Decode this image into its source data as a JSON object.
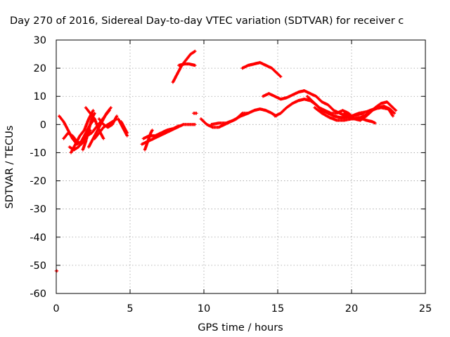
{
  "chart_data": {
    "type": "scatter",
    "title": "Day 270 of 2016, Sidereal Day-to-day VTEC variation (SDTVAR) for receiver c",
    "xlabel": "GPS time / hours",
    "ylabel": "SDTVAR / TECUs",
    "xlim": [
      0,
      25
    ],
    "ylim": [
      -60,
      30
    ],
    "xticks": [
      0,
      5,
      10,
      15,
      20,
      25
    ],
    "yticks": [
      30,
      20,
      10,
      0,
      -10,
      -20,
      -30,
      -40,
      -50,
      -60
    ],
    "grid": true,
    "marker": "plus",
    "color": "#ff0000",
    "segments": [
      [
        [
          0.0,
          -52.0
        ],
        [
          0.05,
          -52.0
        ]
      ],
      [
        [
          0.2,
          3.0
        ],
        [
          0.5,
          1.0
        ],
        [
          0.8,
          -2.0
        ],
        [
          1.1,
          -5.0
        ],
        [
          1.4,
          -7.0
        ],
        [
          1.7,
          -6.0
        ],
        [
          2.0,
          -3.0
        ],
        [
          2.3,
          0.0
        ],
        [
          2.6,
          2.0
        ]
      ],
      [
        [
          0.5,
          -5.0
        ],
        [
          0.8,
          -3.0
        ],
        [
          1.1,
          -4.0
        ],
        [
          1.4,
          -6.0
        ],
        [
          1.7,
          -7.0
        ],
        [
          2.0,
          -5.0
        ],
        [
          2.3,
          -2.0
        ]
      ],
      [
        [
          1.0,
          -10.0
        ],
        [
          1.3,
          -7.0
        ],
        [
          1.6,
          -4.0
        ],
        [
          1.9,
          -2.0
        ],
        [
          2.2,
          2.0
        ],
        [
          2.5,
          5.0
        ]
      ],
      [
        [
          0.9,
          -8.0
        ],
        [
          1.2,
          -9.0
        ],
        [
          1.5,
          -8.0
        ],
        [
          1.8,
          -6.0
        ],
        [
          2.1,
          -4.0
        ],
        [
          2.4,
          -3.0
        ],
        [
          2.7,
          -1.0
        ],
        [
          3.0,
          1.0
        ],
        [
          3.3,
          3.0
        ],
        [
          3.6,
          5.0
        ]
      ],
      [
        [
          1.8,
          -9.0
        ],
        [
          2.0,
          -6.0
        ],
        [
          2.2,
          -2.0
        ],
        [
          2.4,
          2.0
        ],
        [
          2.6,
          4.0
        ]
      ],
      [
        [
          2.0,
          6.0
        ],
        [
          2.3,
          4.0
        ],
        [
          2.6,
          2.0
        ],
        [
          2.9,
          -2.0
        ],
        [
          3.2,
          -5.0
        ]
      ],
      [
        [
          2.2,
          -8.0
        ],
        [
          2.5,
          -5.0
        ],
        [
          2.8,
          -2.0
        ],
        [
          3.1,
          1.0
        ],
        [
          3.4,
          4.0
        ],
        [
          3.7,
          6.0
        ]
      ],
      [
        [
          2.6,
          -5.0
        ],
        [
          2.9,
          -3.0
        ],
        [
          3.2,
          -1.0
        ],
        [
          3.5,
          0.0
        ],
        [
          3.8,
          1.0
        ],
        [
          4.1,
          2.0
        ]
      ],
      [
        [
          2.9,
          2.0
        ],
        [
          3.2,
          0.0
        ],
        [
          3.5,
          -1.0
        ],
        [
          3.8,
          0.0
        ],
        [
          4.1,
          3.0
        ]
      ],
      [
        [
          4.2,
          2.0
        ],
        [
          4.4,
          0.0
        ],
        [
          4.6,
          -2.0
        ],
        [
          4.8,
          -4.0
        ]
      ],
      [
        [
          4.4,
          1.0
        ],
        [
          4.6,
          -1.0
        ],
        [
          4.8,
          -3.0
        ]
      ],
      [
        [
          5.8,
          -7.0
        ],
        [
          6.2,
          -6.0
        ],
        [
          6.6,
          -5.0
        ],
        [
          7.0,
          -4.0
        ],
        [
          7.4,
          -3.0
        ],
        [
          7.8,
          -2.0
        ],
        [
          8.2,
          -1.0
        ],
        [
          8.6,
          0.0
        ],
        [
          9.0,
          0.0
        ],
        [
          9.4,
          0.0
        ]
      ],
      [
        [
          5.9,
          -5.0
        ],
        [
          6.3,
          -4.0
        ],
        [
          6.7,
          -4.0
        ],
        [
          7.1,
          -3.0
        ],
        [
          7.5,
          -2.0
        ],
        [
          7.9,
          -1.5
        ],
        [
          8.3,
          -0.5
        ]
      ],
      [
        [
          6.0,
          -9.0
        ],
        [
          6.2,
          -6.0
        ],
        [
          6.4,
          -3.0
        ],
        [
          6.5,
          -2.0
        ]
      ],
      [
        [
          9.3,
          4.0
        ],
        [
          9.5,
          4.0
        ]
      ],
      [
        [
          7.9,
          15.0
        ],
        [
          8.2,
          18.0
        ],
        [
          8.5,
          21.0
        ],
        [
          8.8,
          23.0
        ],
        [
          9.1,
          25.0
        ],
        [
          9.4,
          26.0
        ]
      ],
      [
        [
          8.3,
          21.0
        ],
        [
          8.7,
          21.5
        ],
        [
          9.0,
          21.5
        ],
        [
          9.4,
          21.0
        ]
      ],
      [
        [
          9.8,
          2.0
        ],
        [
          10.2,
          0.0
        ],
        [
          10.6,
          -1.0
        ],
        [
          11.0,
          -1.0
        ],
        [
          11.4,
          0.0
        ],
        [
          11.8,
          1.0
        ],
        [
          12.2,
          2.0
        ],
        [
          12.6,
          4.0
        ],
        [
          13.0,
          4.0
        ],
        [
          13.4,
          5.0
        ],
        [
          13.8,
          5.5
        ],
        [
          14.2,
          5.0
        ],
        [
          14.6,
          4.0
        ],
        [
          14.9,
          3.0
        ]
      ],
      [
        [
          10.5,
          0.0
        ],
        [
          11.0,
          0.5
        ],
        [
          11.5,
          0.5
        ],
        [
          12.0,
          1.5
        ],
        [
          12.5,
          3.0
        ],
        [
          13.0,
          4.0
        ]
      ],
      [
        [
          12.6,
          20.0
        ],
        [
          13.0,
          21.0
        ],
        [
          13.4,
          21.5
        ],
        [
          13.8,
          22.0
        ],
        [
          14.2,
          21.0
        ],
        [
          14.6,
          20.0
        ],
        [
          15.0,
          18.0
        ],
        [
          15.2,
          17.0
        ]
      ],
      [
        [
          14.0,
          10.0
        ],
        [
          14.4,
          11.0
        ],
        [
          14.8,
          10.0
        ],
        [
          15.2,
          9.0
        ],
        [
          15.6,
          9.5
        ],
        [
          16.0,
          10.5
        ],
        [
          16.4,
          11.5
        ],
        [
          16.8,
          12.0
        ],
        [
          17.2,
          11.0
        ],
        [
          17.6,
          10.0
        ],
        [
          18.0,
          8.0
        ],
        [
          18.4,
          7.0
        ],
        [
          18.8,
          5.0
        ],
        [
          19.2,
          4.0
        ],
        [
          19.6,
          3.0
        ],
        [
          20.0,
          2.0
        ],
        [
          20.4,
          2.0
        ],
        [
          20.8,
          3.0
        ],
        [
          21.2,
          4.0
        ],
        [
          21.6,
          6.0
        ],
        [
          22.0,
          7.5
        ],
        [
          22.4,
          8.0
        ],
        [
          22.8,
          6.0
        ],
        [
          23.0,
          5.0
        ]
      ],
      [
        [
          14.8,
          3.0
        ],
        [
          15.2,
          4.0
        ],
        [
          15.6,
          6.0
        ],
        [
          16.0,
          7.5
        ],
        [
          16.4,
          8.5
        ],
        [
          16.8,
          9.0
        ],
        [
          17.2,
          8.5
        ],
        [
          17.6,
          7.0
        ],
        [
          18.0,
          5.0
        ],
        [
          18.4,
          4.0
        ],
        [
          18.8,
          3.0
        ],
        [
          19.2,
          2.5
        ],
        [
          19.6,
          2.5
        ],
        [
          20.0,
          3.0
        ],
        [
          20.4,
          3.5
        ],
        [
          20.8,
          4.0
        ]
      ],
      [
        [
          17.0,
          10.0
        ],
        [
          17.4,
          8.0
        ],
        [
          17.8,
          6.0
        ],
        [
          18.2,
          5.0
        ],
        [
          18.6,
          4.0
        ],
        [
          19.0,
          4.0
        ],
        [
          19.4,
          5.0
        ],
        [
          19.8,
          4.0
        ],
        [
          20.2,
          2.0
        ],
        [
          20.6,
          1.5
        ],
        [
          21.0,
          3.0
        ],
        [
          21.4,
          5.0
        ],
        [
          21.8,
          6.0
        ],
        [
          22.2,
          6.5
        ],
        [
          22.6,
          5.5
        ],
        [
          22.9,
          4.0
        ]
      ],
      [
        [
          17.5,
          6.0
        ],
        [
          18.0,
          4.0
        ],
        [
          18.5,
          2.5
        ],
        [
          19.0,
          1.5
        ],
        [
          19.5,
          1.5
        ],
        [
          20.0,
          2.0
        ],
        [
          20.5,
          2.5
        ],
        [
          21.0,
          1.5
        ],
        [
          21.4,
          1.0
        ],
        [
          21.6,
          0.5
        ]
      ],
      [
        [
          19.5,
          4.0
        ],
        [
          20.0,
          3.0
        ],
        [
          20.5,
          4.0
        ],
        [
          21.0,
          4.5
        ],
        [
          21.5,
          5.5
        ],
        [
          22.0,
          6.0
        ],
        [
          22.5,
          5.5
        ],
        [
          22.8,
          3.0
        ]
      ]
    ]
  }
}
